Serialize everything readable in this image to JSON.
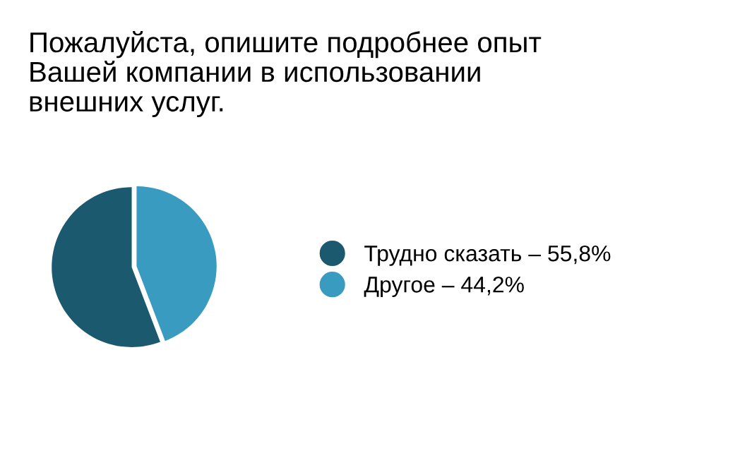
{
  "chart_data": {
    "type": "pie",
    "title": "Пожалуйста, опишите подробнее опыт\nВашей компании в использовании\nвнешних услуг.",
    "categories": [
      "Трудно сказать – 55,8%",
      "Другое – 44,2%"
    ],
    "values": [
      55.8,
      44.2
    ],
    "colors": [
      "#1b5a6e",
      "#3a9bc1"
    ],
    "legend": "right"
  }
}
